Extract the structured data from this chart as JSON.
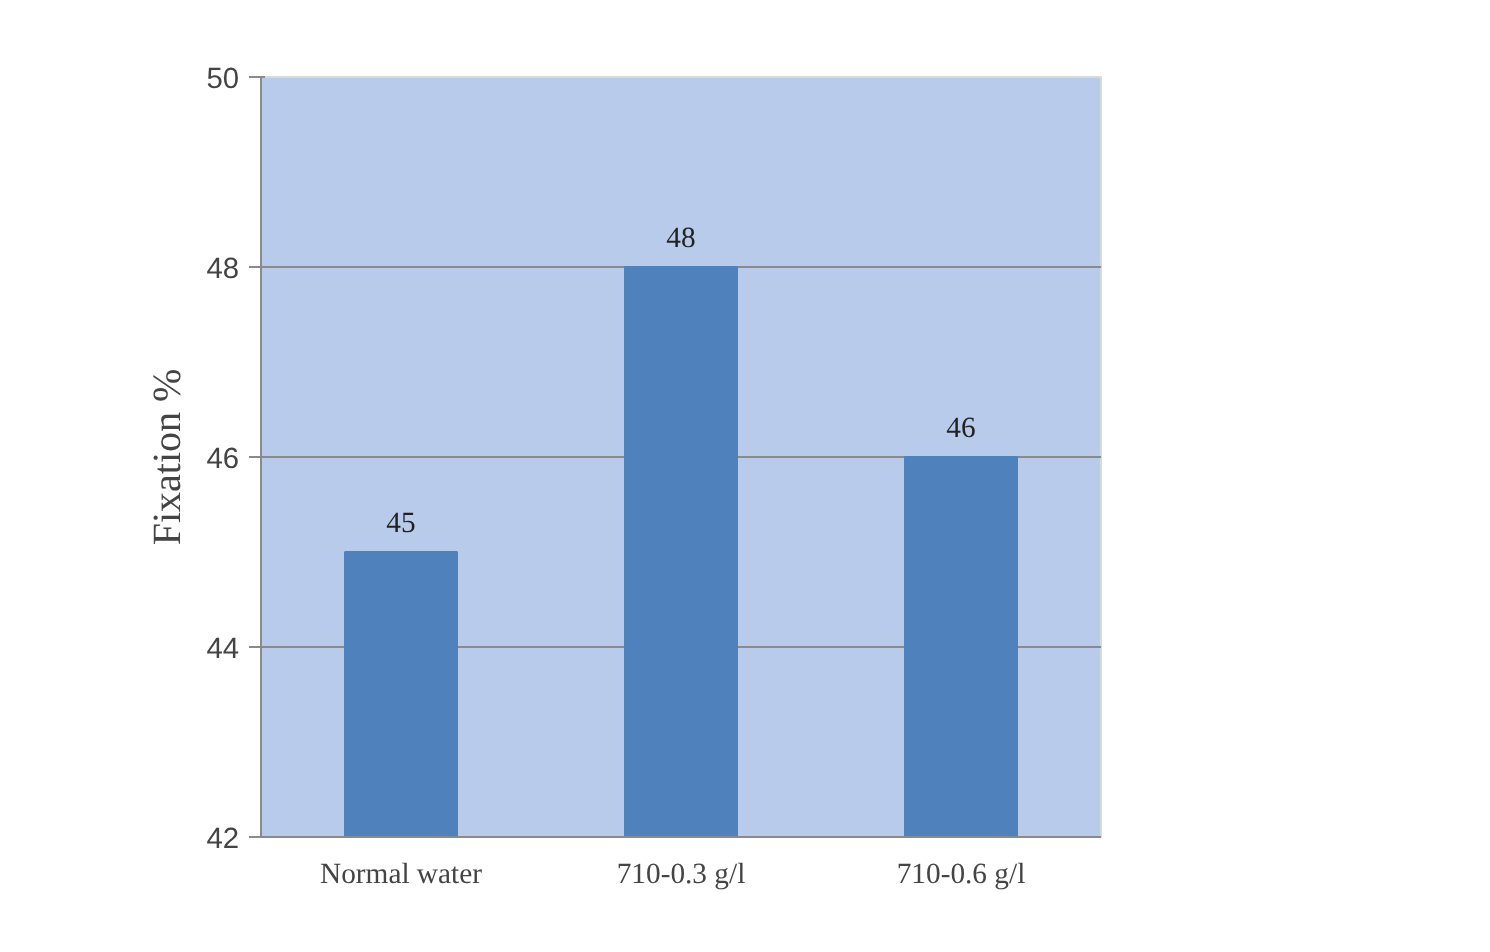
{
  "chart_data": {
    "type": "bar",
    "ylabel": "Fixation %",
    "categories": [
      "Normal water",
      "710-0.3 g/l",
      "710-0.6 g/l"
    ],
    "values": [
      45,
      48,
      46
    ],
    "color": "#4f81bd",
    "ylim": [
      42,
      50
    ],
    "yticks": [
      42,
      44,
      46,
      48,
      50
    ],
    "grid": "y",
    "data_labels": true
  }
}
